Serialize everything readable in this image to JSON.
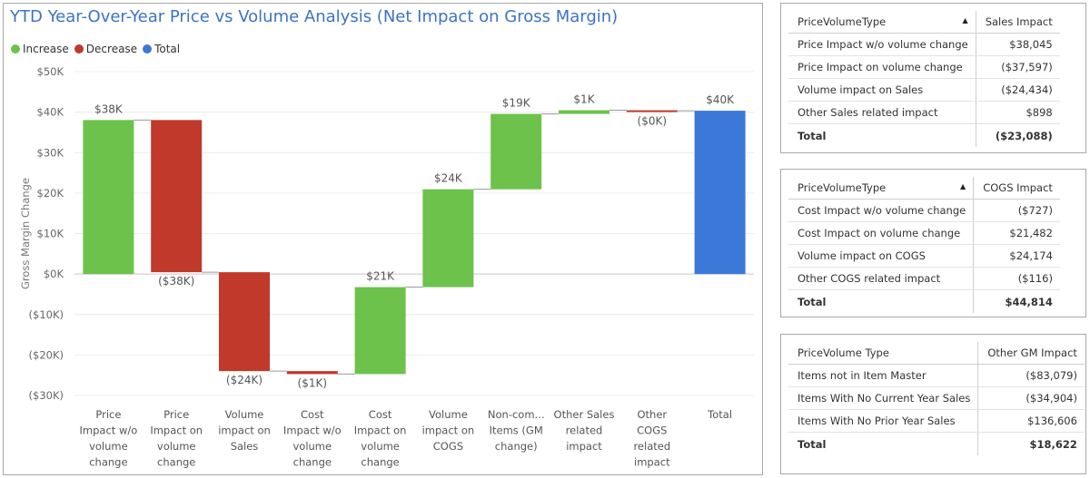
{
  "chart_data": {
    "type": "waterfall",
    "title": "YTD Year-Over-Year Price vs Volume Analysis (Net Impact on Gross Margin)",
    "ylabel": "Gross Margin Change",
    "xlabel": "",
    "ylim": [
      -30000,
      50000
    ],
    "yticks": [
      50000,
      40000,
      30000,
      20000,
      10000,
      0,
      -10000,
      -20000,
      -30000
    ],
    "ytick_labels": [
      "$50K",
      "$40K",
      "$30K",
      "$20K",
      "$10K",
      "$0K",
      "($10K)",
      "($20K)",
      "($30K)"
    ],
    "grid": true,
    "legend_position": "top-left",
    "legend": [
      {
        "label": "Increase",
        "color": "#6cc24a"
      },
      {
        "label": "Decrease",
        "color": "#c0392b"
      },
      {
        "label": "Total",
        "color": "#3c78d8"
      }
    ],
    "categories": [
      [
        "Price",
        "Impact w/o",
        "volume",
        "change"
      ],
      [
        "Price",
        "Impact on",
        "volume",
        "change"
      ],
      [
        "Volume",
        "impact on",
        "Sales"
      ],
      [
        "Cost",
        "Impact w/o",
        "volume",
        "change"
      ],
      [
        "Cost",
        "Impact on",
        "volume",
        "change"
      ],
      [
        "Volume",
        "impact on",
        "COGS"
      ],
      [
        "Non-com...",
        "Items (GM",
        "change)"
      ],
      [
        "Other Sales",
        "related",
        "impact"
      ],
      [
        "Other",
        "COGS",
        "related",
        "impact"
      ],
      [
        "Total"
      ]
    ],
    "values": [
      38045,
      -37597,
      -24434,
      -727,
      21482,
      24174,
      18622,
      898,
      -116,
      40347
    ],
    "kinds": [
      "increase",
      "decrease",
      "decrease",
      "decrease",
      "increase",
      "increase",
      "increase",
      "increase",
      "decrease",
      "total"
    ],
    "data_labels": [
      "$38K",
      "($38K)",
      "($24K)",
      "($1K)",
      "$21K",
      "$24K",
      "$19K",
      "$1K",
      "($0K)",
      "$40K"
    ]
  },
  "tables": {
    "sales": {
      "headers": [
        "PriceVolumeType",
        "Sales Impact"
      ],
      "sorted": true,
      "rows": [
        [
          "Price Impact w/o volume change",
          "$38,045"
        ],
        [
          "Price Impact on volume change",
          "($37,597)"
        ],
        [
          "Volume impact on Sales",
          "($24,434)"
        ],
        [
          "Other Sales related impact",
          "$898"
        ]
      ],
      "total": [
        "Total",
        "($23,088)"
      ]
    },
    "cogs": {
      "headers": [
        "PriceVolumeType",
        "COGS Impact"
      ],
      "sorted": true,
      "rows": [
        [
          "Cost Impact w/o volume change",
          "($727)"
        ],
        [
          "Cost Impact on volume change",
          "$21,482"
        ],
        [
          "Volume impact on COGS",
          "$24,174"
        ],
        [
          "Other COGS related impact",
          "($116)"
        ]
      ],
      "total": [
        "Total",
        "$44,814"
      ]
    },
    "other": {
      "headers": [
        "PriceVolume Type",
        "Other GM Impact"
      ],
      "sorted": false,
      "rows": [
        [
          "Items not in Item Master",
          "($83,079)"
        ],
        [
          "Items With No Current Year Sales",
          "($34,904)"
        ],
        [
          "Items With No Prior Year Sales",
          "$136,606"
        ]
      ],
      "total": [
        "Total",
        "$18,622"
      ]
    }
  },
  "icons": {
    "sort": "sort-ascending-icon"
  }
}
